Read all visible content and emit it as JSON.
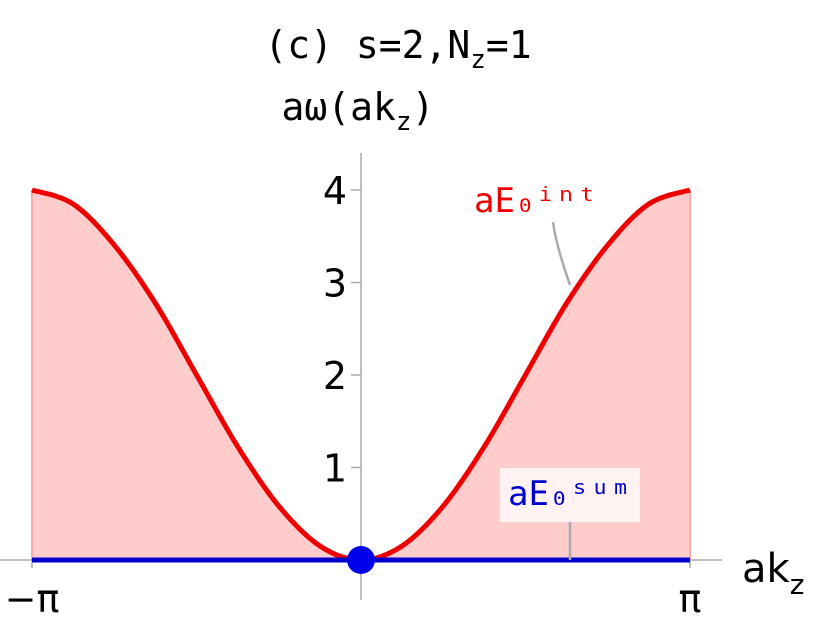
{
  "chart_data": {
    "type": "line",
    "title": [
      "(c) s=2,N",
      "z",
      "=1"
    ],
    "ylabel": [
      "aω(ak",
      "z",
      ")"
    ],
    "xlabel": [
      "ak",
      "z"
    ],
    "x": [
      -3.1416,
      -2.75,
      -2.36,
      -1.96,
      -1.57,
      -1.18,
      -0.79,
      -0.39,
      0,
      0.39,
      0.79,
      1.18,
      1.57,
      1.96,
      2.36,
      2.75,
      3.1416
    ],
    "series": [
      {
        "name": "aE₀ⁱⁿᵗ",
        "color": "#ee0000",
        "fill": "#ffcccc",
        "values": [
          4,
          3.85,
          3.41,
          2.77,
          2,
          1.23,
          0.59,
          0.15,
          0,
          0.15,
          0.59,
          1.23,
          2,
          2.77,
          3.41,
          3.85,
          4
        ]
      },
      {
        "name": "aE₀ˢᵘᵐ",
        "color": "#0000cc",
        "values": [
          0,
          0,
          0,
          0,
          0,
          0,
          0,
          0,
          0,
          0,
          0,
          0,
          0,
          0,
          0,
          0,
          0
        ]
      }
    ],
    "point": {
      "x": 0,
      "y": 0,
      "color": "#0000ee"
    },
    "xlim": [
      -3.1416,
      3.1416
    ],
    "xticks": [
      {
        "value": -3.1416,
        "label": "−π"
      },
      {
        "value": 3.1416,
        "label": "π"
      }
    ],
    "ylim": [
      0,
      4.4
    ],
    "yticks": [
      1,
      2,
      3,
      4
    ]
  }
}
